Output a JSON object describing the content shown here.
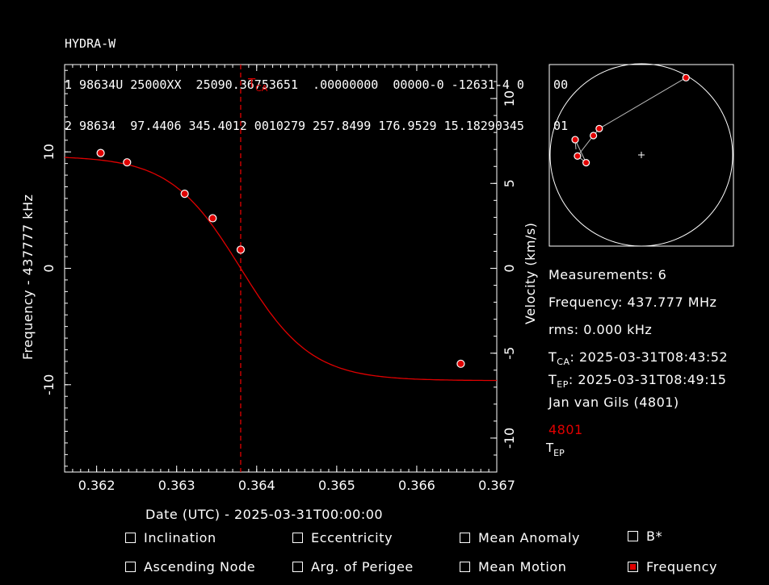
{
  "header": {
    "title": "HYDRA-W",
    "tle_line1": "1 98634U 25000XX  25090.36753651  .00000000  00000-0 -12631-4 0    00",
    "tle_line2": "2 98634  97.4406 345.4012 0010279 257.8499 176.9529 15.18290345    01"
  },
  "colors": {
    "background": "#000000",
    "foreground": "#ffffff",
    "accent": "#e00000"
  },
  "chart_data": {
    "type": "scatter",
    "xlabel": "Date (UTC) - 2025-03-31T00:00:00",
    "ylabel_left": "Frequency - 437777 kHz",
    "ylabel_right": "Velocity (km/s)",
    "xlim": [
      0.3616,
      0.367
    ],
    "ylim": [
      -17.5,
      17.5
    ],
    "y2lim": [
      -12.0,
      12.0
    ],
    "x_ticks": [
      0.362,
      0.363,
      0.364,
      0.365,
      0.366,
      0.367
    ],
    "y_ticks": [
      -10,
      0,
      10
    ],
    "y2_ticks": [
      -10,
      -5,
      0,
      5,
      10
    ],
    "tca_label": "T",
    "tca_sub": "CA",
    "tca_x": 0.3638,
    "tep_label": "T",
    "tep_sub": "EP",
    "series": [
      {
        "name": "4801",
        "points": [
          {
            "x": 0.36205,
            "y": 9.9
          },
          {
            "x": 0.36238,
            "y": 9.1
          },
          {
            "x": 0.3631,
            "y": 6.4
          },
          {
            "x": 0.36345,
            "y": 4.3
          },
          {
            "x": 0.3638,
            "y": 1.6
          },
          {
            "x": 0.36655,
            "y": -8.2
          }
        ]
      }
    ],
    "fit_curve": {
      "center": 0.3638,
      "amplitude": 9.65,
      "width": 0.00088
    }
  },
  "skyplot": {
    "points": [
      {
        "az": 30,
        "el": 2
      },
      {
        "az": 302,
        "el": 41
      },
      {
        "az": 292,
        "el": 39
      },
      {
        "az": 283,
        "el": 23
      },
      {
        "az": 269,
        "el": 27
      },
      {
        "az": 262,
        "el": 35
      }
    ]
  },
  "info": {
    "measurements": "Measurements: 6",
    "frequency": "Frequency: 437.777 MHz",
    "rms": "rms: 0.000 kHz",
    "tca_prefix": "T",
    "tca_sub": "CA",
    "tca_value": ": 2025-03-31T08:43:52",
    "tep_prefix": "T",
    "tep_sub": "EP",
    "tep_value": ": 2025-03-31T08:49:15",
    "observer": "Jan van Gils (4801)",
    "site": "4801"
  },
  "controls": [
    {
      "label": "Inclination",
      "checked": false
    },
    {
      "label": "Eccentricity",
      "checked": false
    },
    {
      "label": "Mean Anomaly",
      "checked": false
    },
    {
      "label": "B*",
      "checked": false
    },
    {
      "label": "Ascending Node",
      "checked": false
    },
    {
      "label": "Arg. of Perigee",
      "checked": false
    },
    {
      "label": "Mean Motion",
      "checked": false
    },
    {
      "label": "Frequency",
      "checked": true
    }
  ]
}
